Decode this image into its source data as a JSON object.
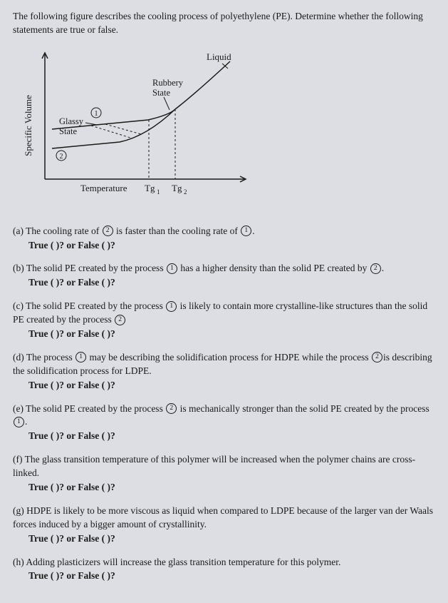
{
  "intro": "The following figure describes the cooling process of polyethylene (PE). Determine whether the following statements are true or false.",
  "figure": {
    "ylabel": "Specific Volume",
    "xlabel": "Temperature",
    "tg1": "Tg",
    "tg1_sub": "1",
    "tg2": "Tg",
    "tg2_sub": "2",
    "liquid": "Liquid",
    "rubbery": "Rubbery State",
    "glassy": "Glassy State",
    "c1": "1",
    "c2": "2",
    "circled_1": "1",
    "circled_2": "2"
  },
  "tf_prompt": "True (   )? or False (   )?",
  "questions": [
    {
      "label": "(a)",
      "parts": [
        "The cooling rate of ",
        "C2",
        " is faster than the cooling rate of ",
        "C1",
        "."
      ]
    },
    {
      "label": "(b)",
      "parts": [
        "The solid PE created by the process ",
        "C1",
        " has a higher density than the solid PE created by ",
        "C2",
        "."
      ]
    },
    {
      "label": "(c)",
      "parts": [
        "The solid PE created by the process ",
        "C1",
        " is likely to contain more crystalline-like structures than the solid PE created by the process ",
        "C2"
      ]
    },
    {
      "label": "(d)",
      "parts": [
        "The process ",
        "C1",
        " may be describing the solidification process for HDPE while the process ",
        "C2",
        "is describing the solidification process for LDPE."
      ]
    },
    {
      "label": "(e)",
      "parts": [
        "The solid PE created by the process ",
        "C2",
        " is mechanically stronger than the solid PE created by the process ",
        "C1",
        "."
      ]
    },
    {
      "label": "(f)",
      "parts": [
        "The glass transition temperature of this polymer will be increased when the polymer chains are cross-linked."
      ]
    },
    {
      "label": "(g)",
      "parts": [
        "HDPE is likely to be more viscous as liquid when compared to LDPE because of the larger van der Waals forces induced by a bigger amount of crystallinity."
      ]
    },
    {
      "label": "(h)",
      "parts": [
        "Adding plasticizers will increase the glass transition temperature for this polymer."
      ]
    }
  ]
}
